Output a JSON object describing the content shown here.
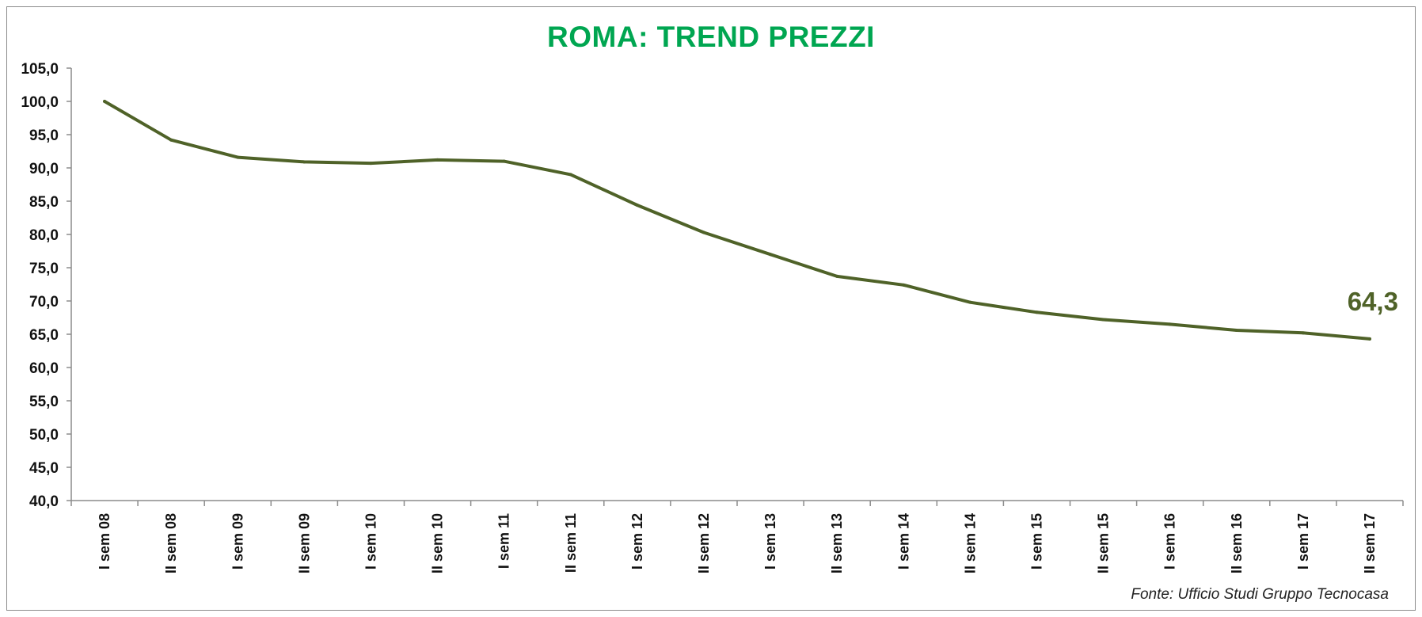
{
  "chart_data": {
    "type": "line",
    "title": "ROMA: TREND PREZZI",
    "source": "Fonte: Ufficio Studi Gruppo Tecnocasa",
    "categories": [
      "I sem 08",
      "II sem 08",
      "I sem 09",
      "II sem 09",
      "I sem 10",
      "II sem 10",
      "I sem 11",
      "II sem 11",
      "I sem 12",
      "II sem 12",
      "I sem 13",
      "II sem 13",
      "I sem 14",
      "II sem 14",
      "I sem 15",
      "II sem 15",
      "I sem 16",
      "II sem 16",
      "I sem 17",
      "II sem 17"
    ],
    "series": [
      {
        "values": [
          100.0,
          94.2,
          91.6,
          90.9,
          90.7,
          91.2,
          91.0,
          89.0,
          84.4,
          80.3,
          77.0,
          73.7,
          72.4,
          69.8,
          68.3,
          67.2,
          66.5,
          65.6,
          65.2,
          64.3
        ],
        "color": "#4f6228"
      }
    ],
    "data_label": "64,3",
    "y_ticks": [
      "40,0",
      "45,0",
      "50,0",
      "55,0",
      "60,0",
      "65,0",
      "70,0",
      "75,0",
      "80,0",
      "85,0",
      "90,0",
      "95,0",
      "100,0",
      "105,0"
    ],
    "ylim": [
      40,
      105
    ],
    "y_step": 5,
    "grid": false,
    "legend": "none"
  }
}
